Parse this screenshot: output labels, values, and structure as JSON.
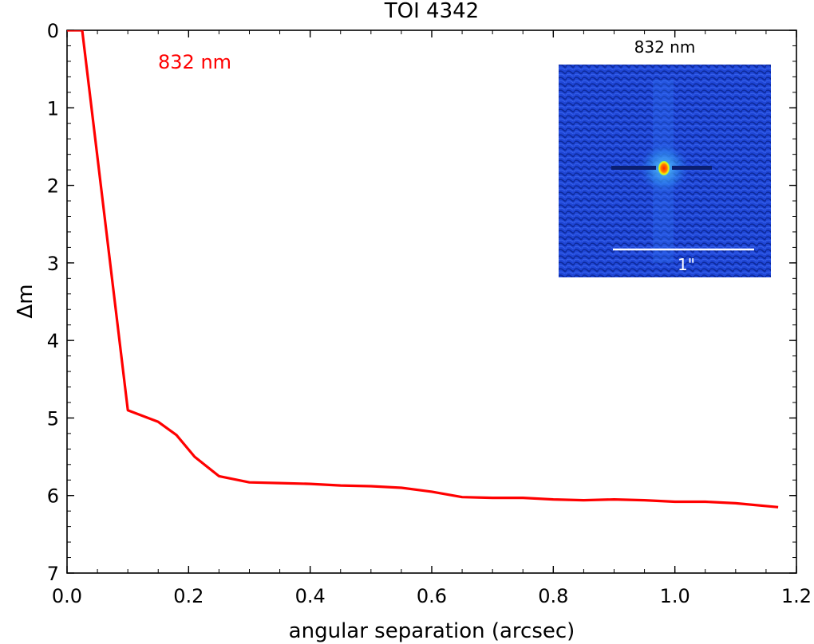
{
  "chart_data": {
    "type": "line",
    "title": "TOI 4342",
    "xlabel": "angular separation (arcsec)",
    "ylabel": "Δm",
    "xlim": [
      0.0,
      1.2
    ],
    "ylim": [
      0,
      7
    ],
    "y_inverted": true,
    "x_ticks": [
      0.0,
      0.2,
      0.4,
      0.6,
      0.8,
      1.0,
      1.2
    ],
    "x_tick_labels": [
      "0.0",
      "0.2",
      "0.4",
      "0.6",
      "0.8",
      "1.0",
      "1.2"
    ],
    "y_ticks": [
      0,
      1,
      2,
      3,
      4,
      5,
      6,
      7
    ],
    "y_tick_labels": [
      "0",
      "1",
      "2",
      "3",
      "4",
      "5",
      "6",
      "7"
    ],
    "legend_label": "832 nm",
    "series": [
      {
        "name": "832 nm",
        "color": "#ff0000",
        "x": [
          0.0,
          0.025,
          0.1,
          0.15,
          0.18,
          0.21,
          0.25,
          0.3,
          0.35,
          0.4,
          0.45,
          0.5,
          0.55,
          0.6,
          0.65,
          0.7,
          0.75,
          0.8,
          0.85,
          0.9,
          0.95,
          1.0,
          1.05,
          1.1,
          1.17
        ],
        "y": [
          0.0,
          0.0,
          4.9,
          5.05,
          5.22,
          5.5,
          5.75,
          5.83,
          5.84,
          5.85,
          5.87,
          5.88,
          5.9,
          5.95,
          6.02,
          6.03,
          6.03,
          6.05,
          6.06,
          6.05,
          6.06,
          6.08,
          6.08,
          6.1,
          6.15
        ]
      }
    ],
    "inset": {
      "title": "832 nm",
      "scale_bar_label": "1\"",
      "description_colors": {
        "background": "#1a3ec8",
        "core": "#ff2a00",
        "halo": "#ffe600"
      }
    }
  }
}
